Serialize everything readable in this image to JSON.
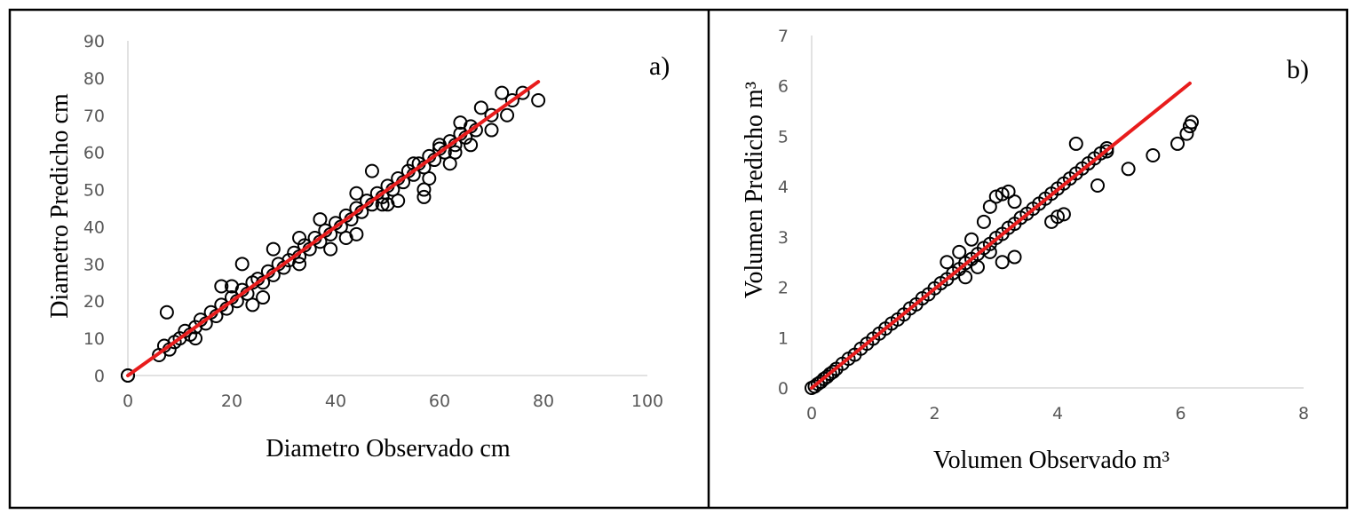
{
  "chart_data": [
    {
      "type": "scatter",
      "panel_label": "a)",
      "xlabel": "Diametro Observado cm",
      "ylabel": "Diametro Predicho cm",
      "xlim": [
        0,
        100
      ],
      "ylim": [
        0,
        90
      ],
      "xticks": [
        "0",
        "20",
        "40",
        "60",
        "80",
        "100"
      ],
      "yticks": [
        "0",
        "10",
        "20",
        "30",
        "40",
        "50",
        "60",
        "70",
        "80",
        "90"
      ],
      "fit_line": {
        "x": [
          0,
          79
        ],
        "y": [
          0,
          79
        ],
        "color": "#e81c1c"
      },
      "marker_color": "#000000",
      "series": [
        {
          "name": "observations",
          "x": [
            0,
            0,
            7.5,
            6,
            7,
            8,
            9,
            10,
            11,
            12,
            13,
            14,
            15,
            16,
            17,
            18,
            19,
            20,
            21,
            22,
            23,
            24,
            25,
            26,
            27,
            28,
            29,
            30,
            31,
            32,
            33,
            34,
            35,
            36,
            37,
            38,
            39,
            40,
            41,
            42,
            43,
            44,
            45,
            46,
            47,
            48,
            49,
            50,
            51,
            52,
            53,
            54,
            55,
            56,
            57,
            58,
            59,
            60,
            61,
            62,
            63,
            64,
            65,
            66,
            67,
            18,
            22,
            26,
            33,
            39,
            44,
            50,
            57,
            13,
            20,
            24,
            28,
            33,
            37,
            42,
            47,
            52,
            55,
            58,
            60,
            62,
            64,
            66,
            68,
            70,
            72,
            73,
            74,
            76,
            79,
            70,
            63,
            57,
            49,
            44
          ],
          "y": [
            0,
            0,
            17,
            5.5,
            8,
            7,
            9,
            10,
            12,
            11,
            13,
            15,
            14,
            17,
            16,
            19,
            18,
            21,
            20,
            23,
            22,
            25,
            26,
            25,
            28,
            27,
            30,
            29,
            31,
            33,
            32,
            35,
            34,
            37,
            36,
            39,
            38,
            41,
            40,
            43,
            42,
            45,
            44,
            47,
            46,
            49,
            48,
            51,
            50,
            53,
            52,
            55,
            54,
            57,
            56,
            59,
            58,
            61,
            60,
            63,
            62,
            65,
            64,
            67,
            66,
            24,
            30,
            21,
            37,
            34,
            38,
            46,
            50,
            10,
            24,
            19,
            34,
            30,
            42,
            37,
            55,
            47,
            57,
            53,
            62,
            57,
            68,
            62,
            72,
            66,
            76,
            70,
            74,
            76,
            74,
            70,
            60,
            48,
            46,
            49
          ]
        }
      ]
    },
    {
      "type": "scatter",
      "panel_label": "b)",
      "xlabel": "Volumen Observado m³",
      "ylabel": "Volumen Predicho m³",
      "xlim": [
        0,
        8
      ],
      "ylim": [
        0,
        7
      ],
      "xticks": [
        "0",
        "2",
        "4",
        "6",
        "8"
      ],
      "yticks": [
        "0",
        "1",
        "2",
        "3",
        "4",
        "5",
        "6",
        "7"
      ],
      "fit_line": {
        "x": [
          0,
          6.15
        ],
        "y": [
          0,
          6.05
        ],
        "color": "#e81c1c"
      },
      "marker_color": "#000000",
      "series": [
        {
          "name": "observations",
          "x": [
            0,
            0.05,
            0.1,
            0.15,
            0.2,
            0.25,
            0.3,
            0.35,
            0.4,
            0.5,
            0.6,
            0.7,
            0.8,
            0.9,
            1.0,
            1.1,
            1.2,
            1.3,
            1.4,
            1.5,
            1.6,
            1.7,
            1.8,
            1.9,
            2.0,
            2.1,
            2.2,
            2.3,
            2.4,
            2.5,
            2.6,
            2.7,
            2.8,
            2.9,
            3.0,
            3.1,
            3.2,
            3.3,
            3.4,
            3.5,
            3.6,
            3.7,
            3.8,
            3.9,
            4.0,
            4.1,
            4.2,
            4.3,
            4.4,
            4.5,
            4.6,
            4.7,
            4.8,
            2.2,
            2.4,
            2.6,
            2.8,
            2.9,
            3.0,
            3.1,
            3.2,
            3.3,
            2.5,
            2.7,
            2.9,
            3.1,
            3.3,
            3.9,
            4.0,
            4.1,
            4.3,
            5.15,
            5.55,
            5.95,
            6.1,
            6.15,
            6.18,
            4.65,
            4.8
          ],
          "y": [
            0,
            0.03,
            0.08,
            0.12,
            0.18,
            0.22,
            0.28,
            0.32,
            0.38,
            0.48,
            0.58,
            0.66,
            0.78,
            0.88,
            0.98,
            1.08,
            1.18,
            1.28,
            1.36,
            1.46,
            1.58,
            1.66,
            1.78,
            1.86,
            1.98,
            2.08,
            2.16,
            2.28,
            2.36,
            2.48,
            2.56,
            2.66,
            2.78,
            2.86,
            2.98,
            3.06,
            3.18,
            3.26,
            3.38,
            3.46,
            3.56,
            3.66,
            3.76,
            3.86,
            3.96,
            4.06,
            4.16,
            4.26,
            4.36,
            4.46,
            4.56,
            4.66,
            4.76,
            2.5,
            2.7,
            2.95,
            3.3,
            3.6,
            3.8,
            3.85,
            3.9,
            3.7,
            2.2,
            2.4,
            2.7,
            2.5,
            2.6,
            3.3,
            3.4,
            3.45,
            4.85,
            4.35,
            4.62,
            4.85,
            5.05,
            5.2,
            5.28,
            4.02,
            4.7
          ]
        }
      ]
    }
  ]
}
